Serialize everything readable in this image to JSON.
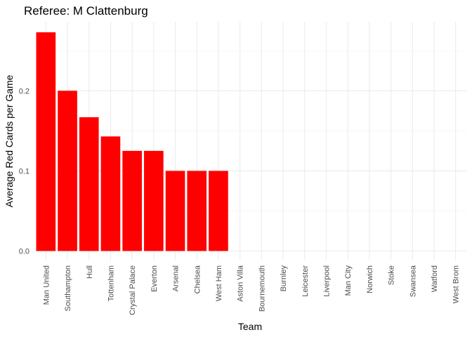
{
  "chart_data": {
    "type": "bar",
    "title": "Referee: M Clattenburg",
    "xlabel": "Team",
    "ylabel": "Average Red Cards per Game",
    "categories": [
      "Man United",
      "Southampton",
      "Hull",
      "Tottenham",
      "Crystal Palace",
      "Everton",
      "Arsenal",
      "Chelsea",
      "West Ham",
      "Aston Villa",
      "Bournemouth",
      "Burnley",
      "Leicester",
      "Liverpool",
      "Man City",
      "Norwich",
      "Stoke",
      "Swansea",
      "Watford",
      "West Brom"
    ],
    "values": [
      0.273,
      0.2,
      0.167,
      0.143,
      0.125,
      0.125,
      0.1,
      0.1,
      0.1,
      0,
      0,
      0,
      0,
      0,
      0,
      0,
      0,
      0,
      0,
      0
    ],
    "ylim": [
      0,
      0.287
    ],
    "yticks": [
      0,
      0.1,
      0.2
    ],
    "ytick_labels": [
      "0.0",
      "0.1",
      "0.2"
    ],
    "bar_color": "#ff0000",
    "grid": true
  }
}
